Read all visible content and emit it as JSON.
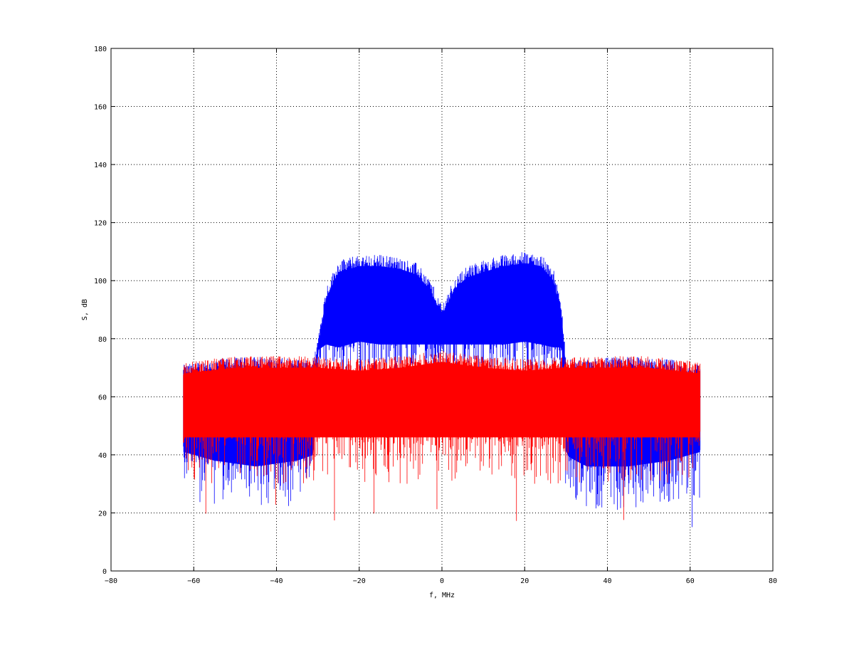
{
  "chart_data": {
    "type": "line",
    "title": "",
    "xlabel": "f, MHz",
    "ylabel": "S, dB",
    "xlim": [
      -80,
      80
    ],
    "ylim": [
      0,
      180
    ],
    "xticks": [
      -80,
      -60,
      -40,
      -20,
      0,
      20,
      40,
      60,
      80
    ],
    "yticks": [
      0,
      20,
      40,
      60,
      80,
      100,
      120,
      140,
      160,
      180
    ],
    "xtick_labels": [
      "−80",
      "−60",
      "−40",
      "−20",
      "0",
      "20",
      "40",
      "60",
      "80"
    ],
    "ytick_labels": [
      "0",
      "20",
      "40",
      "60",
      "80",
      "100",
      "120",
      "140",
      "160",
      "180"
    ],
    "grid": true,
    "legend": "none",
    "series": [
      {
        "color": "#0000ff",
        "x": [
          -62.5,
          -55,
          -45,
          -35,
          -31,
          -30,
          -28,
          -25,
          -20,
          -15,
          -10,
          -6,
          -3,
          -1,
          0,
          1,
          3,
          6,
          10,
          15,
          20,
          24,
          27,
          29,
          30,
          31,
          35,
          45,
          55,
          62.5
        ],
        "upper": [
          70,
          72,
          73,
          72,
          72,
          80,
          97,
          106,
          108,
          108,
          107,
          105,
          100,
          94,
          91,
          94,
          100,
          104,
          106,
          108,
          109,
          108,
          103,
          90,
          72,
          72,
          72,
          73,
          72,
          70
        ],
        "lower": [
          35,
          32,
          30,
          32,
          34,
          70,
          72,
          71,
          73,
          72,
          72,
          72,
          72,
          72,
          72,
          72,
          72,
          72,
          72,
          72,
          73,
          72,
          71,
          71,
          35,
          33,
          30,
          30,
          32,
          35
        ]
      },
      {
        "color": "#ff0000",
        "x": [
          -62.5,
          -50,
          -40,
          -30,
          -20,
          -10,
          -5,
          0,
          5,
          10,
          20,
          30,
          40,
          50,
          62.5
        ],
        "upper": [
          71,
          73,
          73,
          73,
          72,
          73,
          74,
          75,
          74,
          73,
          72,
          73,
          73,
          73,
          71
        ],
        "lower": [
          40,
          40,
          40,
          40,
          40,
          40,
          40,
          40,
          40,
          40,
          40,
          40,
          40,
          40,
          40
        ]
      }
    ]
  }
}
